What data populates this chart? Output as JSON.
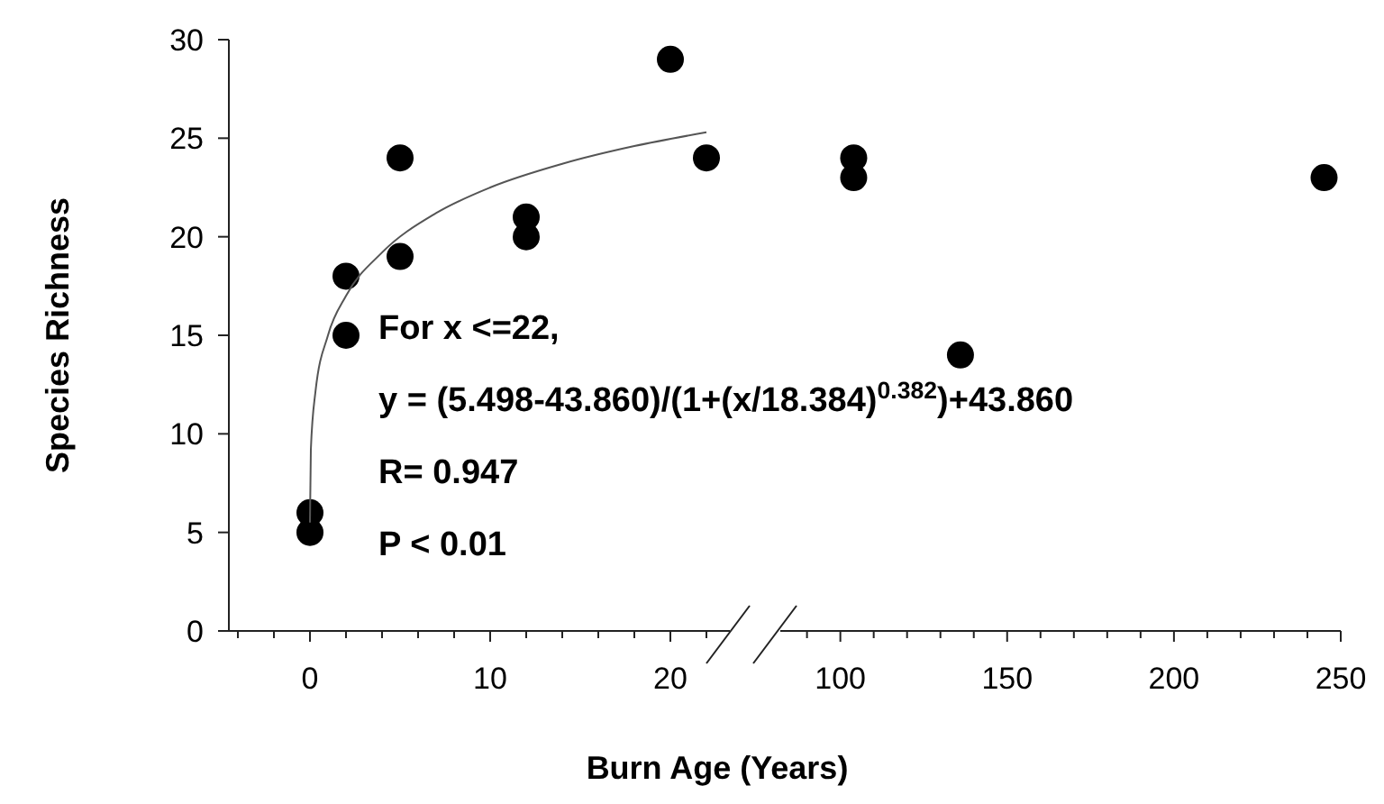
{
  "chart_data": [
    {
      "type": "scatter",
      "xlabel": "Burn Age (Years)",
      "ylabel": "Species Richness",
      "xlim": [
        -4.5,
        23.3
      ],
      "ylim": [
        0,
        30
      ],
      "xticks": [
        {
          "value": -4,
          "label": null
        },
        {
          "value": -2,
          "label": null
        },
        0,
        {
          "value": 2,
          "label": null
        },
        {
          "value": 4,
          "label": null
        },
        {
          "value": 6,
          "label": null
        },
        {
          "value": 8,
          "label": null
        },
        10,
        {
          "value": 12,
          "label": null
        },
        {
          "value": 14,
          "label": null
        },
        {
          "value": 16,
          "label": null
        },
        {
          "value": 18,
          "label": null
        },
        20,
        {
          "value": 22,
          "label": null
        }
      ],
      "yticks": [
        0,
        5,
        10,
        15,
        20,
        25,
        30
      ],
      "marker": "circle",
      "grid": false,
      "series": [
        {
          "color": "#000000",
          "x": [
            0,
            0,
            2,
            2,
            5,
            5,
            12,
            12,
            20,
            22
          ],
          "values": [
            6,
            5,
            18,
            15,
            24,
            19,
            21,
            20,
            29,
            24
          ]
        },
        {
          "type": "line",
          "color": "#555555",
          "marker": "none",
          "x": [
            0,
            0.05,
            0.3,
            1,
            2,
            4,
            7,
            10,
            14,
            18,
            22
          ],
          "values": [
            5.5,
            9.2,
            12.1,
            15,
            17,
            19.2,
            21.2,
            22.5,
            23.7,
            24.6,
            25.3
          ]
        }
      ],
      "annotations": [
        "For x <=22,",
        "y = (5.498-43.860)/(1+(x/18.384)$^{0.382}$)+43.860",
        "R=  0.947",
        "P < 0.01"
      ]
    },
    {
      "type": "scatter",
      "xlim": [
        82,
        250
      ],
      "ylim": [
        0,
        30
      ],
      "tick_labels": "x",
      "marker": "circle",
      "grid": false,
      "xticks": [
        {
          "value": 90,
          "label": null
        },
        100,
        {
          "value": 110,
          "label": null
        },
        {
          "value": 120,
          "label": null
        },
        {
          "value": 130,
          "label": null
        },
        {
          "value": 140,
          "label": null
        },
        150,
        {
          "value": 160,
          "label": null
        },
        {
          "value": 170,
          "label": null
        },
        {
          "value": 180,
          "label": null
        },
        {
          "value": 190,
          "label": null
        },
        200,
        {
          "value": 210,
          "label": null
        },
        {
          "value": 220,
          "label": null
        },
        {
          "value": 230,
          "label": null
        },
        {
          "value": 240,
          "label": null
        },
        250
      ],
      "series": [
        {
          "color": "#000000",
          "x": [
            104,
            104,
            136,
            245
          ],
          "values": [
            24,
            23,
            14,
            23
          ]
        }
      ]
    }
  ]
}
